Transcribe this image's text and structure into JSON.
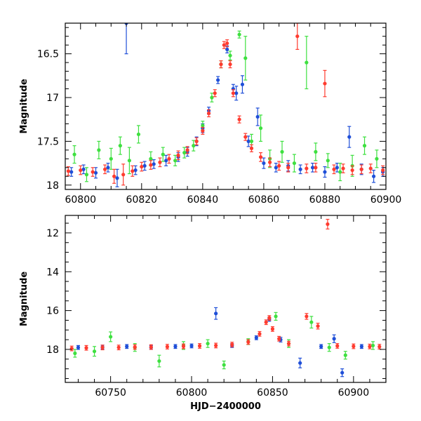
{
  "chart_data": [
    {
      "type": "scatter",
      "panel": "top",
      "xlabel": "",
      "ylabel": "Magnitude",
      "xlim": [
        60795,
        60900
      ],
      "ylim": [
        18.05,
        16.15
      ],
      "y_inverted": true,
      "xticks": [
        60800,
        60820,
        60840,
        60860,
        60880,
        60900
      ],
      "xtick_labels": [
        "60800",
        "60820",
        "60840",
        "60860",
        "60880",
        "60900"
      ],
      "yticks": [
        16.5,
        17,
        17.5,
        18
      ],
      "ytick_labels": [
        "16.5",
        "17",
        "17.5",
        "18"
      ],
      "grid": false,
      "legend": "none",
      "series": [
        {
          "color": "#1f4fd8",
          "points": [
            {
              "x": 60797,
              "y": 17.85,
              "err": 0.05
            },
            {
              "x": 60801,
              "y": 17.82,
              "err": 0.05
            },
            {
              "x": 60805,
              "y": 17.86,
              "err": 0.06
            },
            {
              "x": 60809,
              "y": 17.8,
              "err": 0.05
            },
            {
              "x": 60812,
              "y": 17.92,
              "err": 0.1
            },
            {
              "x": 60815,
              "y": 16.15,
              "err": 0.35
            },
            {
              "x": 60818,
              "y": 17.83,
              "err": 0.05
            },
            {
              "x": 60821,
              "y": 17.78,
              "err": 0.05
            },
            {
              "x": 60824,
              "y": 17.76,
              "err": 0.05
            },
            {
              "x": 60828,
              "y": 17.72,
              "err": 0.06
            },
            {
              "x": 60832,
              "y": 17.68,
              "err": 0.05
            },
            {
              "x": 60835,
              "y": 17.62,
              "err": 0.05
            },
            {
              "x": 60838,
              "y": 17.5,
              "err": 0.05
            },
            {
              "x": 60840,
              "y": 17.35,
              "err": 0.05
            },
            {
              "x": 60842,
              "y": 17.15,
              "err": 0.04
            },
            {
              "x": 60845,
              "y": 16.8,
              "err": 0.04
            },
            {
              "x": 60848,
              "y": 16.45,
              "err": 0.04
            },
            {
              "x": 60850,
              "y": 16.9,
              "err": 0.05
            },
            {
              "x": 60851,
              "y": 16.95,
              "err": 0.08
            },
            {
              "x": 60853,
              "y": 16.85,
              "err": 0.1
            },
            {
              "x": 60855,
              "y": 17.5,
              "err": 0.06
            },
            {
              "x": 60858,
              "y": 17.22,
              "err": 0.1
            },
            {
              "x": 60860,
              "y": 17.75,
              "err": 0.06
            },
            {
              "x": 60864,
              "y": 17.8,
              "err": 0.05
            },
            {
              "x": 60868,
              "y": 17.78,
              "err": 0.06
            },
            {
              "x": 60872,
              "y": 17.82,
              "err": 0.05
            },
            {
              "x": 60876,
              "y": 17.8,
              "err": 0.05
            },
            {
              "x": 60880,
              "y": 17.85,
              "err": 0.06
            },
            {
              "x": 60884,
              "y": 17.8,
              "err": 0.05
            },
            {
              "x": 60888,
              "y": 17.45,
              "err": 0.12
            },
            {
              "x": 60892,
              "y": 17.82,
              "err": 0.06
            },
            {
              "x": 60896,
              "y": 17.9,
              "err": 0.07
            },
            {
              "x": 60899,
              "y": 17.85,
              "err": 0.05
            }
          ]
        },
        {
          "color": "#3ee040",
          "points": [
            {
              "x": 60798,
              "y": 17.65,
              "err": 0.1
            },
            {
              "x": 60802,
              "y": 17.88,
              "err": 0.08
            },
            {
              "x": 60806,
              "y": 17.6,
              "err": 0.1
            },
            {
              "x": 60810,
              "y": 17.7,
              "err": 0.12
            },
            {
              "x": 60813,
              "y": 17.55,
              "err": 0.1
            },
            {
              "x": 60816,
              "y": 17.72,
              "err": 0.15
            },
            {
              "x": 60819,
              "y": 17.42,
              "err": 0.1
            },
            {
              "x": 60823,
              "y": 17.7,
              "err": 0.08
            },
            {
              "x": 60827,
              "y": 17.65,
              "err": 0.08
            },
            {
              "x": 60831,
              "y": 17.72,
              "err": 0.06
            },
            {
              "x": 60834,
              "y": 17.63,
              "err": 0.06
            },
            {
              "x": 60837,
              "y": 17.55,
              "err": 0.06
            },
            {
              "x": 60840,
              "y": 17.32,
              "err": 0.05
            },
            {
              "x": 60843,
              "y": 17.0,
              "err": 0.05
            },
            {
              "x": 60846,
              "y": 16.62,
              "err": 0.04
            },
            {
              "x": 60849,
              "y": 16.52,
              "err": 0.05
            },
            {
              "x": 60852,
              "y": 16.28,
              "err": 0.04
            },
            {
              "x": 60854,
              "y": 16.55,
              "err": 0.25
            },
            {
              "x": 60856,
              "y": 17.5,
              "err": 0.08
            },
            {
              "x": 60859,
              "y": 17.35,
              "err": 0.15
            },
            {
              "x": 60862,
              "y": 17.7,
              "err": 0.1
            },
            {
              "x": 60866,
              "y": 17.62,
              "err": 0.12
            },
            {
              "x": 60870,
              "y": 17.75,
              "err": 0.1
            },
            {
              "x": 60874,
              "y": 16.6,
              "err": 0.3
            },
            {
              "x": 60877,
              "y": 17.62,
              "err": 0.1
            },
            {
              "x": 60881,
              "y": 17.72,
              "err": 0.08
            },
            {
              "x": 60885,
              "y": 17.85,
              "err": 0.1
            },
            {
              "x": 60889,
              "y": 17.78,
              "err": 0.12
            },
            {
              "x": 60893,
              "y": 17.55,
              "err": 0.1
            },
            {
              "x": 60897,
              "y": 17.7,
              "err": 0.1
            }
          ]
        },
        {
          "color": "#ff3b2f",
          "points": [
            {
              "x": 60796,
              "y": 17.84,
              "err": 0.05
            },
            {
              "x": 60800,
              "y": 17.83,
              "err": 0.05
            },
            {
              "x": 60804,
              "y": 17.85,
              "err": 0.05
            },
            {
              "x": 60808,
              "y": 17.82,
              "err": 0.05
            },
            {
              "x": 60811,
              "y": 17.9,
              "err": 0.08
            },
            {
              "x": 60814,
              "y": 17.88,
              "err": 0.12
            },
            {
              "x": 60817,
              "y": 17.84,
              "err": 0.06
            },
            {
              "x": 60820,
              "y": 17.79,
              "err": 0.05
            },
            {
              "x": 60823,
              "y": 17.77,
              "err": 0.05
            },
            {
              "x": 60826,
              "y": 17.74,
              "err": 0.05
            },
            {
              "x": 60829,
              "y": 17.7,
              "err": 0.05
            },
            {
              "x": 60832,
              "y": 17.66,
              "err": 0.05
            },
            {
              "x": 60835,
              "y": 17.6,
              "err": 0.04
            },
            {
              "x": 60838,
              "y": 17.5,
              "err": 0.04
            },
            {
              "x": 60840,
              "y": 17.38,
              "err": 0.04
            },
            {
              "x": 60842,
              "y": 17.18,
              "err": 0.04
            },
            {
              "x": 60844,
              "y": 16.95,
              "err": 0.04
            },
            {
              "x": 60846,
              "y": 16.62,
              "err": 0.04
            },
            {
              "x": 60847,
              "y": 16.4,
              "err": 0.04
            },
            {
              "x": 60848,
              "y": 16.38,
              "err": 0.04
            },
            {
              "x": 60849,
              "y": 16.62,
              "err": 0.04
            },
            {
              "x": 60850,
              "y": 16.95,
              "err": 0.04
            },
            {
              "x": 60852,
              "y": 17.25,
              "err": 0.04
            },
            {
              "x": 60854,
              "y": 17.45,
              "err": 0.04
            },
            {
              "x": 60856,
              "y": 17.58,
              "err": 0.04
            },
            {
              "x": 60859,
              "y": 17.68,
              "err": 0.05
            },
            {
              "x": 60862,
              "y": 17.74,
              "err": 0.05
            },
            {
              "x": 60865,
              "y": 17.78,
              "err": 0.05
            },
            {
              "x": 60868,
              "y": 17.8,
              "err": 0.05
            },
            {
              "x": 60871,
              "y": 16.3,
              "err": 0.15
            },
            {
              "x": 60874,
              "y": 17.81,
              "err": 0.05
            },
            {
              "x": 60877,
              "y": 17.8,
              "err": 0.05
            },
            {
              "x": 60880,
              "y": 16.84,
              "err": 0.15
            },
            {
              "x": 60883,
              "y": 17.82,
              "err": 0.05
            },
            {
              "x": 60886,
              "y": 17.81,
              "err": 0.05
            },
            {
              "x": 60889,
              "y": 17.83,
              "err": 0.05
            },
            {
              "x": 60892,
              "y": 17.82,
              "err": 0.05
            },
            {
              "x": 60895,
              "y": 17.81,
              "err": 0.05
            },
            {
              "x": 60899,
              "y": 17.83,
              "err": 0.05
            }
          ]
        }
      ]
    },
    {
      "type": "scatter",
      "panel": "bottom",
      "xlabel": "HJD−2400000",
      "ylabel": "Magnitude",
      "xlim": [
        60722,
        60920
      ],
      "ylim": [
        19.7,
        11.1
      ],
      "y_inverted": true,
      "xticks": [
        60750,
        60800,
        60850,
        60900
      ],
      "xtick_labels": [
        "60750",
        "60800",
        "60850",
        "60900"
      ],
      "yticks": [
        12,
        14,
        16,
        18
      ],
      "ytick_labels": [
        "12",
        "14",
        "16",
        "18"
      ],
      "grid": false,
      "legend": "none",
      "series": [
        {
          "color": "#1f4fd8",
          "points": [
            {
              "x": 60730,
              "y": 17.9,
              "err": 0.1
            },
            {
              "x": 60745,
              "y": 17.88,
              "err": 0.1
            },
            {
              "x": 60760,
              "y": 17.85,
              "err": 0.1
            },
            {
              "x": 60775,
              "y": 17.9,
              "err": 0.1
            },
            {
              "x": 60790,
              "y": 17.85,
              "err": 0.1
            },
            {
              "x": 60800,
              "y": 17.82,
              "err": 0.1
            },
            {
              "x": 60815,
              "y": 16.15,
              "err": 0.3
            },
            {
              "x": 60825,
              "y": 17.8,
              "err": 0.1
            },
            {
              "x": 60840,
              "y": 17.4,
              "err": 0.1
            },
            {
              "x": 60848,
              "y": 16.45,
              "err": 0.1
            },
            {
              "x": 60855,
              "y": 17.5,
              "err": 0.12
            },
            {
              "x": 60867,
              "y": 18.7,
              "err": 0.25
            },
            {
              "x": 60880,
              "y": 17.85,
              "err": 0.1
            },
            {
              "x": 60888,
              "y": 17.45,
              "err": 0.2
            },
            {
              "x": 60893,
              "y": 19.2,
              "err": 0.2
            },
            {
              "x": 60905,
              "y": 17.85,
              "err": 0.1
            }
          ]
        },
        {
          "color": "#3ee040",
          "points": [
            {
              "x": 60728,
              "y": 18.2,
              "err": 0.2
            },
            {
              "x": 60740,
              "y": 18.1,
              "err": 0.25
            },
            {
              "x": 60750,
              "y": 17.35,
              "err": 0.25
            },
            {
              "x": 60765,
              "y": 17.9,
              "err": 0.2
            },
            {
              "x": 60780,
              "y": 18.6,
              "err": 0.3
            },
            {
              "x": 60795,
              "y": 17.8,
              "err": 0.2
            },
            {
              "x": 60810,
              "y": 17.7,
              "err": 0.2
            },
            {
              "x": 60820,
              "y": 18.8,
              "err": 0.2
            },
            {
              "x": 60835,
              "y": 17.6,
              "err": 0.15
            },
            {
              "x": 60852,
              "y": 16.3,
              "err": 0.2
            },
            {
              "x": 60860,
              "y": 17.7,
              "err": 0.2
            },
            {
              "x": 60874,
              "y": 16.6,
              "err": 0.3
            },
            {
              "x": 60885,
              "y": 17.9,
              "err": 0.2
            },
            {
              "x": 60895,
              "y": 18.3,
              "err": 0.2
            },
            {
              "x": 60912,
              "y": 17.8,
              "err": 0.2
            }
          ]
        },
        {
          "color": "#ff3b2f",
          "points": [
            {
              "x": 60726,
              "y": 17.95,
              "err": 0.12
            },
            {
              "x": 60735,
              "y": 17.92,
              "err": 0.12
            },
            {
              "x": 60745,
              "y": 17.9,
              "err": 0.12
            },
            {
              "x": 60755,
              "y": 17.9,
              "err": 0.12
            },
            {
              "x": 60765,
              "y": 17.88,
              "err": 0.12
            },
            {
              "x": 60775,
              "y": 17.88,
              "err": 0.12
            },
            {
              "x": 60785,
              "y": 17.86,
              "err": 0.12
            },
            {
              "x": 60795,
              "y": 17.84,
              "err": 0.12
            },
            {
              "x": 60805,
              "y": 17.82,
              "err": 0.12
            },
            {
              "x": 60815,
              "y": 17.8,
              "err": 0.12
            },
            {
              "x": 60825,
              "y": 17.75,
              "err": 0.12
            },
            {
              "x": 60835,
              "y": 17.62,
              "err": 0.12
            },
            {
              "x": 60842,
              "y": 17.2,
              "err": 0.12
            },
            {
              "x": 60846,
              "y": 16.6,
              "err": 0.12
            },
            {
              "x": 60848,
              "y": 16.38,
              "err": 0.12
            },
            {
              "x": 60850,
              "y": 16.95,
              "err": 0.12
            },
            {
              "x": 60854,
              "y": 17.45,
              "err": 0.12
            },
            {
              "x": 60860,
              "y": 17.7,
              "err": 0.12
            },
            {
              "x": 60871,
              "y": 16.3,
              "err": 0.15
            },
            {
              "x": 60878,
              "y": 16.8,
              "err": 0.15
            },
            {
              "x": 60884,
              "y": 11.55,
              "err": 0.25
            },
            {
              "x": 60890,
              "y": 17.82,
              "err": 0.12
            },
            {
              "x": 60900,
              "y": 17.84,
              "err": 0.12
            },
            {
              "x": 60910,
              "y": 17.85,
              "err": 0.12
            },
            {
              "x": 60916,
              "y": 17.86,
              "err": 0.12
            }
          ]
        }
      ]
    }
  ]
}
